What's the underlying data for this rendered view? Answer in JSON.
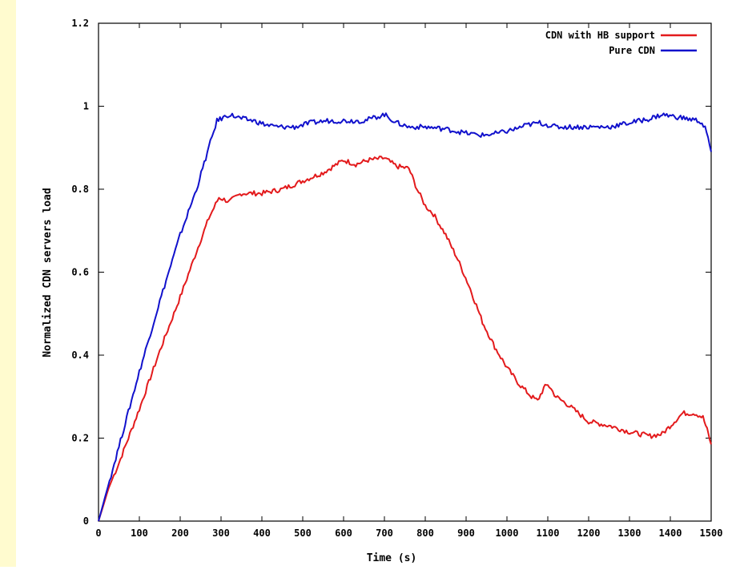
{
  "colors": {
    "frame_bg": "#fffbcf",
    "plot_bg": "#ffffff",
    "axis": "#000000",
    "series_hb": "#e31a1c",
    "series_pure": "#1111cc"
  },
  "chart_data": {
    "type": "line",
    "title": "",
    "xlabel": "Time (s)",
    "ylabel": "Normalized CDN servers load",
    "xlim": [
      0,
      1500
    ],
    "ylim": [
      0,
      1.2
    ],
    "x_ticks": [
      0,
      100,
      200,
      300,
      400,
      500,
      600,
      700,
      800,
      900,
      1000,
      1100,
      1200,
      1300,
      1400,
      1500
    ],
    "x_tick_labels": [
      "0",
      "100",
      "200",
      "300",
      "400",
      "500",
      "600",
      "700",
      "800",
      "900",
      "1000",
      "1100",
      "1200",
      "1300",
      "1400",
      "1500"
    ],
    "y_ticks": [
      0,
      0.2,
      0.4,
      0.6,
      0.8,
      1,
      1.2
    ],
    "y_tick_labels": [
      "0",
      "0.2",
      "0.4",
      "0.6",
      "0.8",
      "1",
      "1.2"
    ],
    "grid": false,
    "legend_position": "top-right",
    "series": [
      {
        "name": "CDN with HB support",
        "color": "#e31a1c",
        "points": [
          [
            0,
            0.0
          ],
          [
            25,
            0.08
          ],
          [
            50,
            0.14
          ],
          [
            100,
            0.27
          ],
          [
            150,
            0.41
          ],
          [
            200,
            0.54
          ],
          [
            240,
            0.65
          ],
          [
            270,
            0.73
          ],
          [
            295,
            0.78
          ],
          [
            320,
            0.77
          ],
          [
            350,
            0.79
          ],
          [
            400,
            0.79
          ],
          [
            450,
            0.8
          ],
          [
            500,
            0.82
          ],
          [
            550,
            0.84
          ],
          [
            600,
            0.87
          ],
          [
            630,
            0.86
          ],
          [
            660,
            0.87
          ],
          [
            700,
            0.875
          ],
          [
            730,
            0.855
          ],
          [
            760,
            0.85
          ],
          [
            780,
            0.8
          ],
          [
            800,
            0.76
          ],
          [
            820,
            0.74
          ],
          [
            850,
            0.69
          ],
          [
            880,
            0.63
          ],
          [
            910,
            0.56
          ],
          [
            940,
            0.48
          ],
          [
            970,
            0.42
          ],
          [
            1000,
            0.37
          ],
          [
            1030,
            0.33
          ],
          [
            1060,
            0.3
          ],
          [
            1075,
            0.29
          ],
          [
            1090,
            0.32
          ],
          [
            1100,
            0.33
          ],
          [
            1120,
            0.3
          ],
          [
            1150,
            0.28
          ],
          [
            1200,
            0.24
          ],
          [
            1250,
            0.23
          ],
          [
            1300,
            0.215
          ],
          [
            1350,
            0.205
          ],
          [
            1380,
            0.21
          ],
          [
            1410,
            0.24
          ],
          [
            1430,
            0.26
          ],
          [
            1460,
            0.26
          ],
          [
            1480,
            0.25
          ],
          [
            1490,
            0.22
          ],
          [
            1500,
            0.185
          ]
        ]
      },
      {
        "name": "Pure CDN",
        "color": "#1111cc",
        "points": [
          [
            0,
            0.0
          ],
          [
            50,
            0.18
          ],
          [
            100,
            0.36
          ],
          [
            150,
            0.53
          ],
          [
            200,
            0.69
          ],
          [
            240,
            0.8
          ],
          [
            270,
            0.9
          ],
          [
            290,
            0.965
          ],
          [
            320,
            0.98
          ],
          [
            350,
            0.97
          ],
          [
            380,
            0.965
          ],
          [
            410,
            0.955
          ],
          [
            440,
            0.95
          ],
          [
            480,
            0.95
          ],
          [
            520,
            0.96
          ],
          [
            560,
            0.965
          ],
          [
            600,
            0.965
          ],
          [
            650,
            0.965
          ],
          [
            700,
            0.98
          ],
          [
            730,
            0.96
          ],
          [
            760,
            0.95
          ],
          [
            800,
            0.95
          ],
          [
            850,
            0.945
          ],
          [
            900,
            0.935
          ],
          [
            940,
            0.93
          ],
          [
            980,
            0.935
          ],
          [
            1020,
            0.945
          ],
          [
            1050,
            0.955
          ],
          [
            1080,
            0.96
          ],
          [
            1120,
            0.95
          ],
          [
            1150,
            0.95
          ],
          [
            1200,
            0.95
          ],
          [
            1250,
            0.95
          ],
          [
            1300,
            0.96
          ],
          [
            1350,
            0.97
          ],
          [
            1380,
            0.98
          ],
          [
            1410,
            0.975
          ],
          [
            1440,
            0.97
          ],
          [
            1470,
            0.965
          ],
          [
            1485,
            0.95
          ],
          [
            1500,
            0.89
          ]
        ]
      }
    ]
  }
}
